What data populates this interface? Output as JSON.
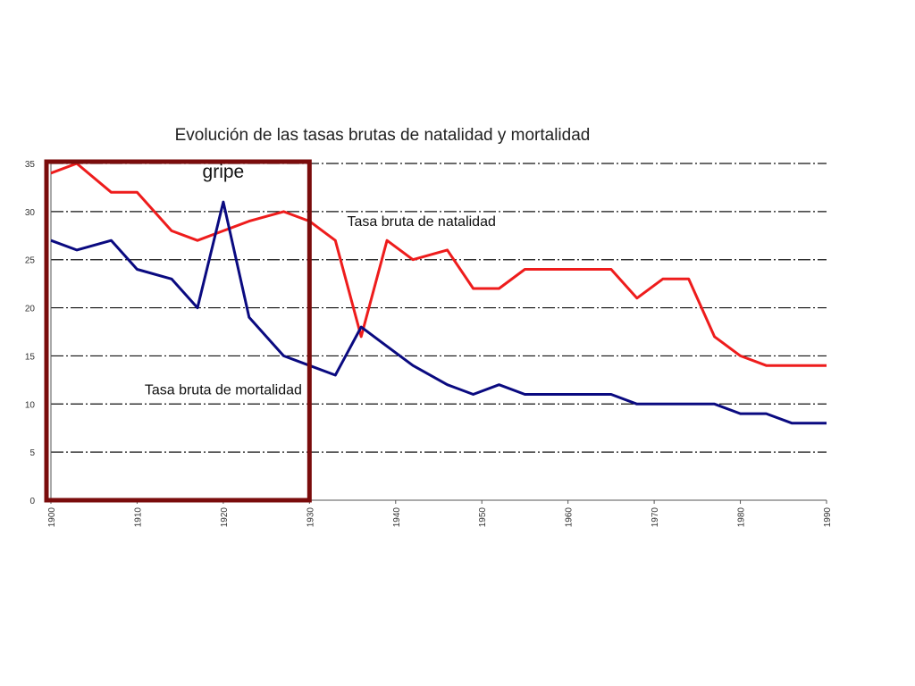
{
  "chart_data": {
    "type": "line",
    "title": "Evolución de las tasas brutas de natalidad y mortalidad",
    "xlabel": "",
    "ylabel": "",
    "xlim": [
      1900,
      1990
    ],
    "ylim": [
      0,
      35
    ],
    "yticks": [
      0,
      5,
      10,
      15,
      20,
      25,
      30,
      35
    ],
    "xticks": [
      1900,
      1910,
      1920,
      1930,
      1940,
      1950,
      1960,
      1970,
      1980,
      1990
    ],
    "xtick_labels": [
      "1900",
      "1910",
      "1920",
      "1930",
      "1940",
      "1950",
      "1960",
      "1970",
      "1980",
      "1990"
    ],
    "grid": "horizontal dash-dot",
    "x": [
      1900,
      1903,
      1907,
      1910,
      1914,
      1917,
      1920,
      1923,
      1927,
      1930,
      1933,
      1936,
      1939,
      1942,
      1946,
      1949,
      1952,
      1955,
      1958,
      1961,
      1965,
      1968,
      1971,
      1974,
      1977,
      1980,
      1983,
      1986,
      1990
    ],
    "series": [
      {
        "name": "Tasa bruta de natalidad",
        "color": "#ee1c1c",
        "values": [
          34,
          35,
          32,
          32,
          28,
          27,
          28,
          29,
          30,
          29,
          27,
          17,
          27,
          25,
          26,
          22,
          22,
          24,
          24,
          24,
          24,
          21,
          23,
          23,
          17,
          15,
          14,
          14,
          14
        ]
      },
      {
        "name": "Tasa bruta de mortalidad",
        "color": "#0a0a80",
        "values": [
          27,
          26,
          27,
          24,
          23,
          20,
          31,
          19,
          15,
          14,
          13,
          18,
          16,
          14,
          12,
          11,
          12,
          11,
          11,
          11,
          11,
          10,
          10,
          10,
          10,
          9,
          9,
          8,
          8
        ]
      }
    ],
    "annotations": [
      {
        "text": "gripe",
        "x": 1920,
        "y": 33.5
      },
      {
        "text": "Tasa bruta de natalidad",
        "x": 1943,
        "y": 28.5
      },
      {
        "text": "Tasa bruta de mortalidad",
        "x": 1920,
        "y": 11
      }
    ],
    "highlight_box": {
      "x_from": 1900,
      "x_to": 1930,
      "y_from": 0,
      "y_to": 35,
      "color": "#7a0c0c"
    }
  }
}
